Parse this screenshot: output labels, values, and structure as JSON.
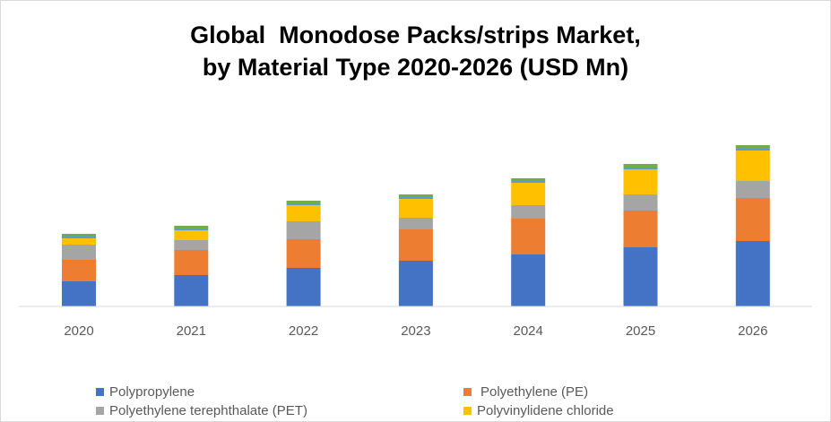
{
  "chart_data": {
    "type": "bar",
    "stacked": true,
    "title_lines": [
      "Global  Monodose Packs/strips Market,",
      "by Material Type 2020-2026 (USD Mn)"
    ],
    "categories": [
      "2020",
      "2021",
      "2022",
      "2023",
      "2024",
      "2025",
      "2026"
    ],
    "series": [
      {
        "name": "Polypropylene",
        "color": "#4472c4",
        "values": [
          28,
          35,
          43,
          51,
          58,
          66,
          73
        ]
      },
      {
        "name": "Polyethylene (PE)",
        "color": "#ed7d31",
        "values": [
          24,
          28,
          32,
          35,
          40,
          41,
          48
        ]
      },
      {
        "name": "Polyethylene terephthalate (PET)",
        "color": "#a5a5a5",
        "values": [
          17,
          11,
          20,
          13,
          15,
          18,
          19
        ]
      },
      {
        "name": "Polyvinylidene chloride",
        "color": "#ffc000",
        "values": [
          7,
          11,
          18,
          21,
          25,
          28,
          34
        ]
      },
      {
        "color": "#5b9bd5",
        "values": [
          2,
          2,
          2,
          2,
          2,
          2,
          2
        ]
      },
      {
        "color": "#70ad47",
        "values": [
          3,
          3,
          3,
          3,
          3,
          4,
          4
        ]
      }
    ],
    "ylim": [
      0,
      200
    ],
    "grid": false,
    "legend_position": "bottom"
  }
}
